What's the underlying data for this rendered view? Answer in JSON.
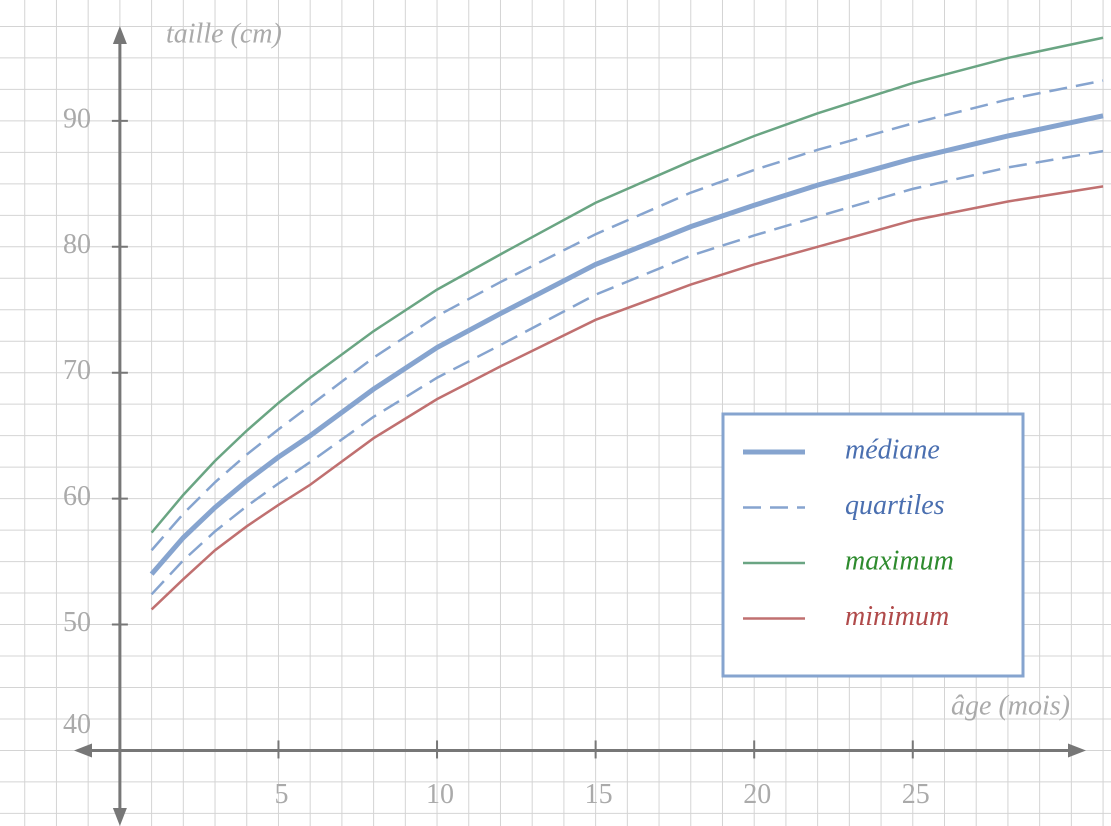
{
  "chart_data": {
    "type": "line",
    "ylabel": "taille (cm)",
    "xlabel": "âge (mois)",
    "x": [
      1,
      2,
      3,
      4,
      5,
      6,
      8,
      10,
      12,
      15,
      18,
      20,
      22,
      25,
      28,
      31
    ],
    "series": [
      {
        "name": "médiane",
        "color": "#86a4cf",
        "label_color": "#4a6fb0",
        "width": 5,
        "dash": false,
        "values": [
          54.0,
          56.9,
          59.3,
          61.4,
          63.3,
          65.0,
          68.7,
          72.0,
          74.7,
          78.6,
          81.6,
          83.3,
          84.9,
          87.0,
          88.8,
          90.4
        ]
      },
      {
        "name": "quartiles",
        "color": "#86a4cf",
        "label_color": "#4a6fb0",
        "width": 2.5,
        "dash": true,
        "values": [
          55.9,
          58.8,
          61.3,
          63.5,
          65.5,
          67.4,
          71.2,
          74.5,
          77.2,
          81.0,
          84.3,
          86.1,
          87.7,
          89.8,
          91.7,
          93.2
        ]
      },
      {
        "color": "#86a4cf",
        "width": 2.5,
        "dash": true,
        "values": [
          52.4,
          55.1,
          57.4,
          59.4,
          61.2,
          62.9,
          66.5,
          69.6,
          72.2,
          76.2,
          79.3,
          80.9,
          82.4,
          84.6,
          86.3,
          87.6
        ]
      },
      {
        "name": "maximum",
        "color": "#6aa583",
        "label_color": "#2e8b2e",
        "width": 2.5,
        "dash": false,
        "values": [
          57.3,
          60.3,
          63.0,
          65.4,
          67.6,
          69.6,
          73.3,
          76.6,
          79.4,
          83.5,
          86.8,
          88.8,
          90.6,
          93.0,
          95.0,
          96.6
        ]
      },
      {
        "name": "minimum",
        "color": "#c07070",
        "label_color": "#b04a4a",
        "width": 2.5,
        "dash": false,
        "values": [
          51.2,
          53.6,
          55.9,
          57.8,
          59.5,
          61.1,
          64.8,
          67.9,
          70.5,
          74.2,
          77.0,
          78.6,
          80.0,
          82.1,
          83.6,
          84.8
        ]
      }
    ],
    "xlim": [
      -3.78,
      31.25
    ],
    "ylim": [
      34,
      99.6
    ],
    "xticks": [
      5,
      10,
      15,
      20,
      25
    ],
    "yticks": [
      40,
      50,
      60,
      70,
      80,
      90
    ],
    "grid": true,
    "grid_step": {
      "x": 1,
      "y": 2.5
    },
    "legend": "lower right"
  }
}
